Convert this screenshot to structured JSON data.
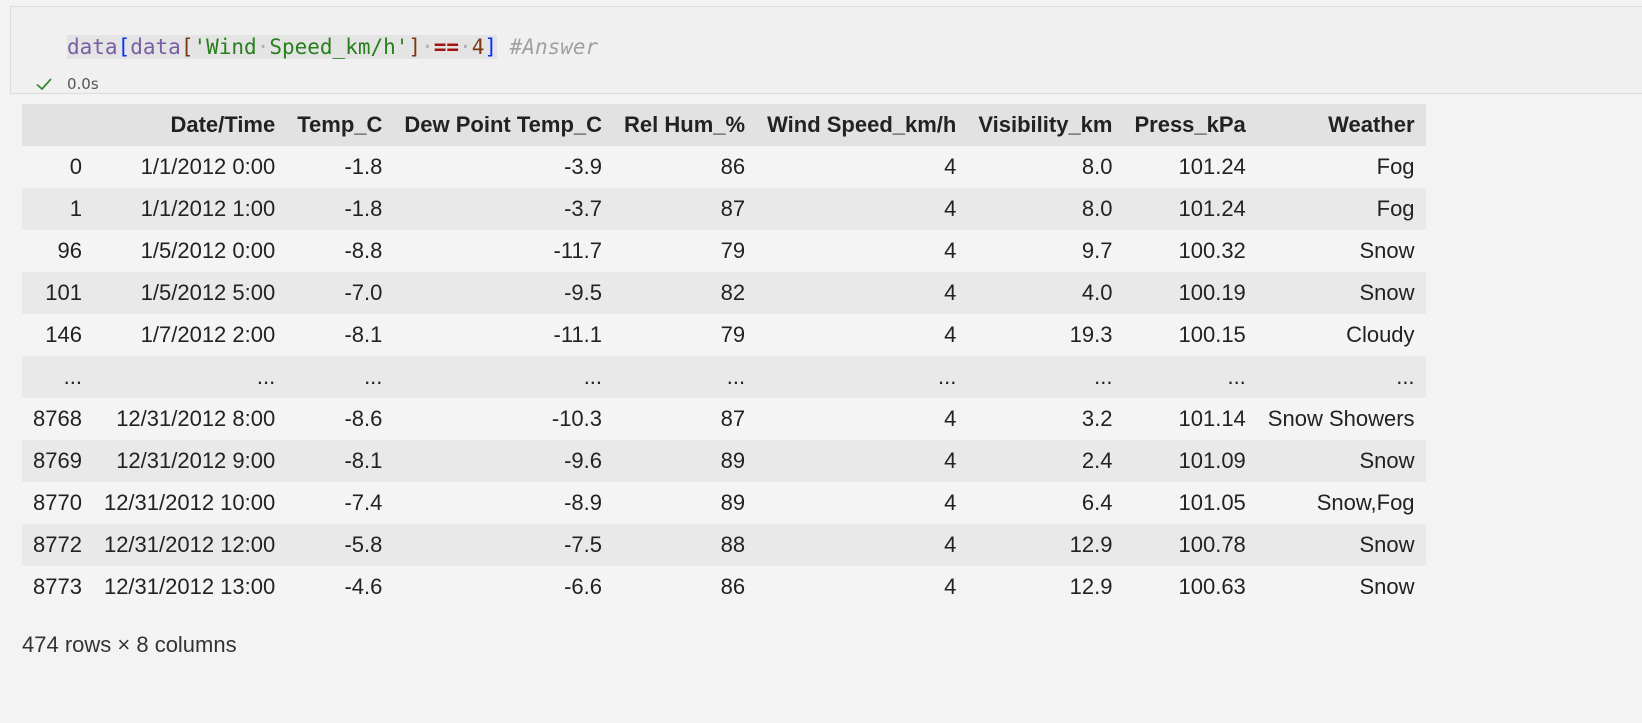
{
  "cell": {
    "code_tokens": [
      {
        "t": "data",
        "c": "tok-ident"
      },
      {
        "t": "[",
        "c": "tok-bracket1"
      },
      {
        "t": "data",
        "c": "tok-ident"
      },
      {
        "t": "[",
        "c": "tok-bracket2"
      },
      {
        "t": "'Wind",
        "c": "tok-str2"
      },
      {
        "t": "·",
        "c": "tok-dot"
      },
      {
        "t": "Speed_km/h'",
        "c": "tok-str2"
      },
      {
        "t": "]",
        "c": "tok-bracket2"
      },
      {
        "t": "·",
        "c": "tok-dot"
      },
      {
        "t": "==",
        "c": "tok-op"
      },
      {
        "t": "·",
        "c": "tok-dot"
      },
      {
        "t": "4",
        "c": "tok-bracket2"
      },
      {
        "t": "]",
        "c": "tok-bracket1"
      },
      {
        "t": " ",
        "c": ""
      },
      {
        "t": "#Answer",
        "c": "tok-cmt"
      }
    ],
    "exec_time": "0.0s",
    "status_icon": "check-icon",
    "status_color": "#388a34"
  },
  "table": {
    "columns": [
      "",
      "Date/Time",
      "Temp_C",
      "Dew Point Temp_C",
      "Rel Hum_%",
      "Wind Speed_km/h",
      "Visibility_km",
      "Press_kPa",
      "Weather"
    ],
    "rows": [
      [
        "0",
        "1/1/2012 0:00",
        "-1.8",
        "-3.9",
        "86",
        "4",
        "8.0",
        "101.24",
        "Fog"
      ],
      [
        "1",
        "1/1/2012 1:00",
        "-1.8",
        "-3.7",
        "87",
        "4",
        "8.0",
        "101.24",
        "Fog"
      ],
      [
        "96",
        "1/5/2012 0:00",
        "-8.8",
        "-11.7",
        "79",
        "4",
        "9.7",
        "100.32",
        "Snow"
      ],
      [
        "101",
        "1/5/2012 5:00",
        "-7.0",
        "-9.5",
        "82",
        "4",
        "4.0",
        "100.19",
        "Snow"
      ],
      [
        "146",
        "1/7/2012 2:00",
        "-8.1",
        "-11.1",
        "79",
        "4",
        "19.3",
        "100.15",
        "Cloudy"
      ],
      [
        "...",
        "...",
        "...",
        "...",
        "...",
        "...",
        "...",
        "...",
        "..."
      ],
      [
        "8768",
        "12/31/2012 8:00",
        "-8.6",
        "-10.3",
        "87",
        "4",
        "3.2",
        "101.14",
        "Snow Showers"
      ],
      [
        "8769",
        "12/31/2012 9:00",
        "-8.1",
        "-9.6",
        "89",
        "4",
        "2.4",
        "101.09",
        "Snow"
      ],
      [
        "8770",
        "12/31/2012 10:00",
        "-7.4",
        "-8.9",
        "89",
        "4",
        "6.4",
        "101.05",
        "Snow,Fog"
      ],
      [
        "8772",
        "12/31/2012 12:00",
        "-5.8",
        "-7.5",
        "88",
        "4",
        "12.9",
        "100.78",
        "Snow"
      ],
      [
        "8773",
        "12/31/2012 13:00",
        "-4.6",
        "-6.6",
        "86",
        "4",
        "12.9",
        "100.63",
        "Snow"
      ]
    ],
    "shape_note": "474 rows × 8 columns"
  }
}
